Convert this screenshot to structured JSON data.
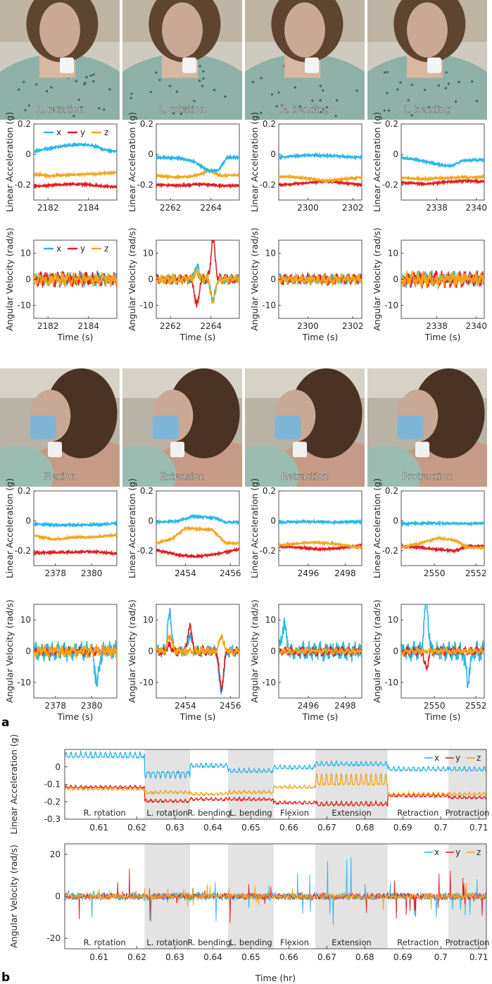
{
  "colors": {
    "x": "#29b6e8",
    "y": "#e01e24",
    "z": "#f2a61c",
    "shade": "#e3e3e3",
    "axis": "#262626"
  },
  "panel_labels": {
    "a": "a",
    "b": "b"
  },
  "axis_labels": {
    "linear": "Linear Acceleration (g)",
    "angular": "Angular Velocity (rad/s)",
    "time_s": "Time (s)",
    "time_hr": "Time (hr)",
    "linear_g_b": "Linear Acceleration (g)",
    "angular_b": "Angular Velocity (rad/s)"
  },
  "legend": {
    "x": "x",
    "y": "y",
    "z": "z"
  },
  "photos": [
    {
      "label": "R. rotation",
      "scene": "bed"
    },
    {
      "label": "L. rotation",
      "scene": "bed"
    },
    {
      "label": "R. bending",
      "scene": "bed"
    },
    {
      "label": "L. bending",
      "scene": "bed"
    },
    {
      "label": "Flexion",
      "scene": "side"
    },
    {
      "label": "Extension",
      "scene": "side"
    },
    {
      "label": "Retraction",
      "scene": "side"
    },
    {
      "label": "Protraction",
      "scene": "side"
    }
  ],
  "chart_data": [
    {
      "type": "line",
      "group": "a",
      "motion": "R. rotation",
      "quantity": "Linear Acceleration (g)",
      "ylim": [
        -0.3,
        0.2
      ],
      "yticks": [
        -0.2,
        0,
        0.2
      ],
      "xlim": [
        2181.3,
        2185.4
      ],
      "xticks": [
        2182,
        2184
      ],
      "series": [
        {
          "name": "x",
          "x": [
            2181.3,
            2182,
            2183,
            2183.6,
            2184.2,
            2184.8,
            2185.4
          ],
          "values": [
            0.02,
            0.04,
            0.06,
            0.065,
            0.06,
            0.03,
            0.02
          ]
        },
        {
          "name": "y",
          "x": [
            2181.3,
            2182,
            2183,
            2184,
            2185.4
          ],
          "values": [
            -0.21,
            -0.205,
            -0.195,
            -0.2,
            -0.215
          ]
        },
        {
          "name": "z",
          "x": [
            2181.3,
            2182,
            2183,
            2184,
            2185.4
          ],
          "values": [
            -0.13,
            -0.14,
            -0.135,
            -0.13,
            -0.12
          ]
        }
      ]
    },
    {
      "type": "line",
      "group": "a",
      "motion": "L. rotation",
      "quantity": "Linear Acceleration (g)",
      "ylim": [
        -0.3,
        0.2
      ],
      "yticks": [
        -0.2,
        0,
        0.2
      ],
      "xlim": [
        2261.3,
        2265.4
      ],
      "xticks": [
        2262,
        2264
      ],
      "series": [
        {
          "name": "x",
          "x": [
            2261.3,
            2262.5,
            2263.2,
            2263.9,
            2264.4,
            2264.8,
            2265.4
          ],
          "values": [
            -0.02,
            -0.025,
            -0.05,
            -0.11,
            -0.1,
            -0.02,
            -0.02
          ]
        },
        {
          "name": "y",
          "x": [
            2261.3,
            2262.5,
            2263.5,
            2264.5,
            2265.4
          ],
          "values": [
            -0.2,
            -0.205,
            -0.195,
            -0.205,
            -0.205
          ]
        },
        {
          "name": "z",
          "x": [
            2261.3,
            2262.5,
            2263.2,
            2263.9,
            2264.5,
            2265.4
          ],
          "values": [
            -0.14,
            -0.15,
            -0.14,
            -0.11,
            -0.14,
            -0.135
          ]
        }
      ]
    },
    {
      "type": "line",
      "group": "a",
      "motion": "R. bending",
      "quantity": "Linear Acceleration (g)",
      "ylim": [
        -0.3,
        0.2
      ],
      "yticks": [
        -0.2,
        0,
        0.2
      ],
      "xlim": [
        2298.7,
        2302.4
      ],
      "xticks": [
        2300,
        2302
      ],
      "series": [
        {
          "name": "x",
          "x": [
            2298.7,
            2300,
            2301,
            2302.4
          ],
          "values": [
            -0.02,
            -0.005,
            -0.01,
            -0.02
          ]
        },
        {
          "name": "y",
          "x": [
            2298.7,
            2299.8,
            2300.8,
            2302.4
          ],
          "values": [
            -0.2,
            -0.19,
            -0.175,
            -0.2
          ]
        },
        {
          "name": "z",
          "x": [
            2298.7,
            2299.8,
            2300.8,
            2302.4
          ],
          "values": [
            -0.145,
            -0.155,
            -0.175,
            -0.15
          ]
        }
      ]
    },
    {
      "type": "line",
      "group": "a",
      "motion": "L. bending",
      "quantity": "Linear Acceleration (g)",
      "ylim": [
        -0.3,
        0.2
      ],
      "yticks": [
        -0.2,
        0,
        0.2
      ],
      "xlim": [
        2336.2,
        2340.4
      ],
      "xticks": [
        2338,
        2340
      ],
      "series": [
        {
          "name": "x",
          "x": [
            2336.2,
            2337.2,
            2338.2,
            2338.8,
            2339.3,
            2340.4
          ],
          "values": [
            -0.02,
            -0.04,
            -0.07,
            -0.075,
            -0.04,
            -0.035
          ]
        },
        {
          "name": "y",
          "x": [
            2336.2,
            2337.5,
            2338.5,
            2339.5,
            2340.4
          ],
          "values": [
            -0.185,
            -0.195,
            -0.18,
            -0.175,
            -0.18
          ]
        },
        {
          "name": "z",
          "x": [
            2336.2,
            2337.5,
            2338.5,
            2339.5,
            2340.4
          ],
          "values": [
            -0.155,
            -0.16,
            -0.155,
            -0.15,
            -0.15
          ]
        }
      ]
    },
    {
      "type": "line",
      "group": "a",
      "motion": "R. rotation",
      "quantity": "Angular Velocity (rad/s)",
      "ylim": [
        -15,
        15
      ],
      "yticks": [
        -10,
        0,
        10
      ],
      "xlim": [
        2181.3,
        2185.4
      ],
      "xticks": [
        2182,
        2184
      ],
      "noise": [
        2.5,
        3,
        2.5
      ]
    },
    {
      "type": "line",
      "group": "a",
      "motion": "L. rotation",
      "quantity": "Angular Velocity (rad/s)",
      "ylim": [
        -15,
        15
      ],
      "yticks": [
        -10,
        0,
        10
      ],
      "xlim": [
        2261.3,
        2265.4
      ],
      "xticks": [
        2262,
        2264
      ],
      "noise": [
        2,
        2,
        2
      ],
      "events": [
        {
          "x": 2263.3,
          "values": [
            5,
            -10,
            3
          ]
        },
        {
          "x": 2264.1,
          "values": [
            -8,
            15,
            -9
          ]
        }
      ]
    },
    {
      "type": "line",
      "group": "a",
      "motion": "R. bending",
      "quantity": "Angular Velocity (rad/s)",
      "ylim": [
        -15,
        15
      ],
      "yticks": [
        -10,
        0,
        10
      ],
      "xlim": [
        2298.7,
        2302.4
      ],
      "xticks": [
        2300,
        2302
      ],
      "noise": [
        2,
        2,
        2
      ]
    },
    {
      "type": "line",
      "group": "a",
      "motion": "L. bending",
      "quantity": "Angular Velocity (rad/s)",
      "ylim": [
        -15,
        15
      ],
      "yticks": [
        -10,
        0,
        10
      ],
      "xlim": [
        2336.2,
        2340.4
      ],
      "xticks": [
        2338,
        2340
      ],
      "noise": [
        3,
        3,
        3
      ]
    },
    {
      "type": "line",
      "group": "a",
      "motion": "Flexion",
      "quantity": "Linear Acceleration (g)",
      "ylim": [
        -0.3,
        0.2
      ],
      "yticks": [
        -0.2,
        0,
        0.2
      ],
      "xlim": [
        2376.8,
        2381.4
      ],
      "xticks": [
        2378,
        2380
      ],
      "series": [
        {
          "name": "x",
          "x": [
            2376.8,
            2378.5,
            2380.5,
            2381.4
          ],
          "values": [
            -0.02,
            -0.03,
            -0.025,
            -0.015
          ]
        },
        {
          "name": "y",
          "x": [
            2376.8,
            2378.5,
            2380,
            2381.4
          ],
          "values": [
            -0.215,
            -0.21,
            -0.205,
            -0.22
          ]
        },
        {
          "name": "z",
          "x": [
            2376.8,
            2378,
            2379,
            2380,
            2381.4
          ],
          "values": [
            -0.1,
            -0.125,
            -0.11,
            -0.11,
            -0.095
          ]
        }
      ]
    },
    {
      "type": "line",
      "group": "a",
      "motion": "Extension",
      "quantity": "Linear Acceleration (g)",
      "ylim": [
        -0.3,
        0.2
      ],
      "yticks": [
        -0.2,
        0,
        0.2
      ],
      "xlim": [
        2452.7,
        2456.4
      ],
      "xticks": [
        2454,
        2456
      ],
      "series": [
        {
          "name": "x",
          "x": [
            2452.7,
            2453.7,
            2454.3,
            2455.3,
            2455.8,
            2456.4
          ],
          "values": [
            -0.01,
            0.0,
            0.03,
            0.02,
            -0.01,
            -0.01
          ]
        },
        {
          "name": "y",
          "x": [
            2452.7,
            2453.7,
            2454.5,
            2455.5,
            2456.4
          ],
          "values": [
            -0.195,
            -0.23,
            -0.24,
            -0.22,
            -0.19
          ]
        },
        {
          "name": "z",
          "x": [
            2452.7,
            2453.4,
            2454,
            2455.2,
            2455.8,
            2456.4
          ],
          "values": [
            -0.15,
            -0.12,
            -0.05,
            -0.06,
            -0.15,
            -0.15
          ]
        }
      ]
    },
    {
      "type": "line",
      "group": "a",
      "motion": "Retraction",
      "quantity": "Linear Acceleration (g)",
      "ylim": [
        -0.3,
        0.2
      ],
      "yticks": [
        -0.2,
        0,
        0.2
      ],
      "xlim": [
        2494.4,
        2498.9
      ],
      "xticks": [
        2496,
        2498
      ],
      "series": [
        {
          "name": "x",
          "x": [
            2494.4,
            2496,
            2497.5,
            2498.9
          ],
          "values": [
            -0.01,
            -0.005,
            -0.01,
            -0.005
          ]
        },
        {
          "name": "y",
          "x": [
            2494.4,
            2495.5,
            2496.5,
            2497.5,
            2498.9
          ],
          "values": [
            -0.17,
            -0.18,
            -0.19,
            -0.185,
            -0.165
          ]
        },
        {
          "name": "z",
          "x": [
            2494.4,
            2495.5,
            2496.5,
            2497.5,
            2498.9
          ],
          "values": [
            -0.165,
            -0.15,
            -0.145,
            -0.155,
            -0.18
          ]
        }
      ]
    },
    {
      "type": "line",
      "group": "a",
      "motion": "Protraction",
      "quantity": "Linear Acceleration (g)",
      "ylim": [
        -0.3,
        0.2
      ],
      "yticks": [
        -0.2,
        0,
        0.2
      ],
      "xlim": [
        2548.4,
        2552.4
      ],
      "xticks": [
        2550,
        2552
      ],
      "series": [
        {
          "name": "x",
          "x": [
            2548.4,
            2550,
            2551.5,
            2552.4
          ],
          "values": [
            -0.02,
            -0.015,
            -0.02,
            -0.015
          ]
        },
        {
          "name": "y",
          "x": [
            2548.4,
            2549.4,
            2550.3,
            2551,
            2551.6,
            2552.4
          ],
          "values": [
            -0.17,
            -0.18,
            -0.195,
            -0.2,
            -0.17,
            -0.17
          ]
        },
        {
          "name": "z",
          "x": [
            2548.4,
            2549.3,
            2550.2,
            2551,
            2551.6,
            2552.4
          ],
          "values": [
            -0.18,
            -0.15,
            -0.115,
            -0.13,
            -0.18,
            -0.18
          ]
        }
      ]
    },
    {
      "type": "line",
      "group": "a",
      "motion": "Flexion",
      "quantity": "Angular Velocity (rad/s)",
      "ylim": [
        -15,
        15
      ],
      "yticks": [
        -10,
        0,
        10
      ],
      "xlim": [
        2376.8,
        2381.4
      ],
      "xticks": [
        2378,
        2380
      ],
      "noise": [
        3,
        1.5,
        2
      ],
      "events": [
        {
          "x": 2380.3,
          "values": [
            -10,
            0,
            0
          ]
        }
      ]
    },
    {
      "type": "line",
      "group": "a",
      "motion": "Extension",
      "quantity": "Angular Velocity (rad/s)",
      "ylim": [
        -15,
        15
      ],
      "yticks": [
        -10,
        0,
        10
      ],
      "xlim": [
        2452.7,
        2456.4
      ],
      "xticks": [
        2454,
        2456
      ],
      "noise": [
        2,
        1.5,
        1.5
      ],
      "events": [
        {
          "x": 2453.3,
          "values": [
            12,
            2,
            5
          ]
        },
        {
          "x": 2454.2,
          "values": [
            5,
            8,
            0
          ]
        },
        {
          "x": 2455.6,
          "values": [
            -14,
            -12,
            5
          ]
        }
      ]
    },
    {
      "type": "line",
      "group": "a",
      "motion": "Retraction",
      "quantity": "Angular Velocity (rad/s)",
      "ylim": [
        -15,
        15
      ],
      "yticks": [
        -10,
        0,
        10
      ],
      "xlim": [
        2494.4,
        2498.9
      ],
      "xticks": [
        2496,
        2498
      ],
      "noise": [
        3,
        1.5,
        1
      ],
      "events": [
        {
          "x": 2494.7,
          "values": [
            9,
            0,
            0
          ]
        }
      ]
    },
    {
      "type": "line",
      "group": "a",
      "motion": "Protraction",
      "quantity": "Angular Velocity (rad/s)",
      "ylim": [
        -15,
        15
      ],
      "yticks": [
        -10,
        0,
        10
      ],
      "xlim": [
        2548.4,
        2552.4
      ],
      "xticks": [
        2550,
        2552
      ],
      "noise": [
        3,
        1.5,
        1
      ],
      "events": [
        {
          "x": 2549.6,
          "values": [
            15,
            -5,
            0
          ]
        },
        {
          "x": 2551.6,
          "values": [
            -9,
            0,
            0
          ]
        }
      ]
    },
    {
      "type": "line",
      "group": "b",
      "quantity": "Linear Acceleration (g)",
      "xlim": [
        0.601,
        0.712
      ],
      "ylim": [
        -0.3,
        0.1
      ],
      "yticks": [
        -0.3,
        -0.2,
        -0.1,
        0
      ],
      "xticks": [
        0.61,
        0.62,
        0.63,
        0.64,
        0.65,
        0.66,
        0.67,
        0.68,
        0.69,
        0.7,
        0.71
      ],
      "xtick_labels": [
        "0.61",
        "0.62",
        "0.63",
        "0.64",
        "0.65",
        "0.66",
        "0.67",
        "0.68",
        "0.69",
        "0.7",
        "0.71"
      ]
    },
    {
      "type": "line",
      "group": "b",
      "quantity": "Angular Velocity (rad/s)",
      "xlim": [
        0.601,
        0.712
      ],
      "ylim": [
        -25,
        25
      ],
      "yticks": [
        -20,
        0,
        20
      ],
      "xticks": [
        0.61,
        0.62,
        0.63,
        0.64,
        0.65,
        0.66,
        0.67,
        0.68,
        0.69,
        0.7,
        0.71
      ],
      "xtick_labels": [
        "0.61",
        "0.62",
        "0.63",
        "0.64",
        "0.65",
        "0.66",
        "0.67",
        "0.68",
        "0.69",
        "0.7",
        "0.71"
      ]
    }
  ],
  "segments": [
    {
      "label": "R. rotation",
      "start": 0.601,
      "end": 0.622,
      "shaded": false,
      "x": 0.055,
      "y": -0.12,
      "z": -0.13
    },
    {
      "label": "L. rotation",
      "start": 0.622,
      "end": 0.634,
      "shaded": true,
      "x": -0.03,
      "y": -0.2,
      "z": -0.15
    },
    {
      "label": "R. bending",
      "start": 0.634,
      "end": 0.644,
      "shaded": false,
      "x": 0.0,
      "y": -0.19,
      "z": -0.16
    },
    {
      "label": "L. bending",
      "start": 0.644,
      "end": 0.656,
      "shaded": true,
      "x": -0.03,
      "y": -0.19,
      "z": -0.15
    },
    {
      "label": "Flexion",
      "start": 0.656,
      "end": 0.667,
      "shaded": false,
      "x": -0.01,
      "y": -0.21,
      "z": -0.12
    },
    {
      "label": "Extension",
      "start": 0.667,
      "end": 0.686,
      "shaded": true,
      "x": 0.01,
      "y": -0.22,
      "z": -0.1
    },
    {
      "label": "Retraction",
      "start": 0.686,
      "end": 0.702,
      "shaded": false,
      "x": -0.02,
      "y": -0.17,
      "z": -0.16
    },
    {
      "label": "Protraction",
      "start": 0.702,
      "end": 0.712,
      "shaded": true,
      "x": -0.02,
      "y": -0.18,
      "z": -0.16
    }
  ]
}
